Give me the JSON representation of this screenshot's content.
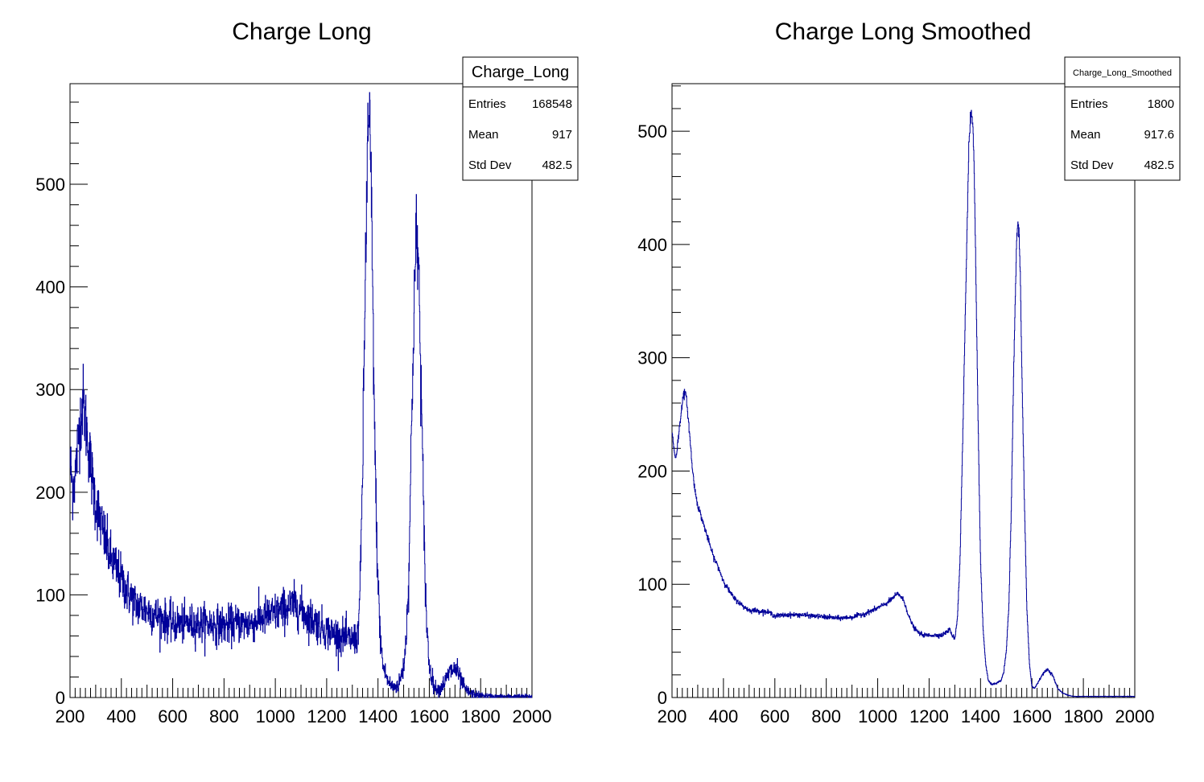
{
  "colors": {
    "line": "#000099",
    "frame": "#000000",
    "background": "#ffffff"
  },
  "chart_data": [
    {
      "type": "line",
      "title": "Charge Long",
      "xlim": [
        200,
        2000
      ],
      "ylim": [
        0,
        598
      ],
      "xticks": [
        200,
        400,
        600,
        800,
        1000,
        1200,
        1400,
        1600,
        1800,
        2000
      ],
      "yticks": [
        0,
        100,
        200,
        300,
        400,
        500
      ],
      "noise": true,
      "stats": {
        "name": "Charge_Long",
        "rows": [
          {
            "label": "Entries",
            "value": "168548"
          },
          {
            "label": "Mean",
            "value": "917"
          },
          {
            "label": "Std Dev",
            "value": "482.5"
          }
        ]
      },
      "series": [
        {
          "x": [
            200,
            210,
            220,
            235,
            250,
            260,
            270,
            285,
            300,
            320,
            340,
            360,
            380,
            400,
            430,
            460,
            500,
            550,
            600,
            650,
            700,
            750,
            800,
            850,
            900,
            950,
            1000,
            1050,
            1080,
            1100,
            1120,
            1150,
            1200,
            1250,
            1300,
            1320,
            1330,
            1340,
            1350,
            1360,
            1365,
            1370,
            1375,
            1380,
            1390,
            1400,
            1410,
            1420,
            1440,
            1460,
            1480,
            1500,
            1510,
            1520,
            1530,
            1540,
            1550,
            1555,
            1560,
            1570,
            1580,
            1590,
            1600,
            1620,
            1640,
            1660,
            1680,
            1700,
            1710,
            1720,
            1740,
            1760,
            1800,
            1850,
            1900,
            2000
          ],
          "y": [
            230,
            205,
            215,
            260,
            290,
            270,
            250,
            215,
            190,
            170,
            150,
            135,
            125,
            115,
            100,
            90,
            85,
            78,
            72,
            72,
            72,
            72,
            70,
            72,
            72,
            78,
            82,
            88,
            90,
            86,
            80,
            75,
            65,
            60,
            56,
            58,
            100,
            220,
            400,
            545,
            555,
            540,
            470,
            380,
            210,
            110,
            55,
            30,
            15,
            10,
            12,
            30,
            60,
            120,
            250,
            380,
            450,
            440,
            400,
            280,
            150,
            70,
            30,
            10,
            8,
            15,
            25,
            28,
            25,
            18,
            8,
            4,
            2,
            1,
            1,
            1
          ]
        }
      ]
    },
    {
      "type": "line",
      "title": "Charge Long Smoothed",
      "xlim": [
        200,
        2000
      ],
      "ylim": [
        0,
        542
      ],
      "xticks": [
        200,
        400,
        600,
        800,
        1000,
        1200,
        1400,
        1600,
        1800,
        2000
      ],
      "yticks": [
        0,
        100,
        200,
        300,
        400,
        500
      ],
      "noise": false,
      "stats": {
        "name": "Charge_Long_Smoothed",
        "rows": [
          {
            "label": "Entries",
            "value": "1800"
          },
          {
            "label": "Mean",
            "value": "917.6"
          },
          {
            "label": "Std Dev",
            "value": "482.5"
          }
        ]
      },
      "series": [
        {
          "x": [
            200,
            205,
            210,
            215,
            220,
            230,
            240,
            250,
            255,
            260,
            270,
            280,
            290,
            300,
            320,
            340,
            360,
            380,
            400,
            420,
            440,
            460,
            480,
            500,
            520,
            550,
            580,
            600,
            650,
            700,
            750,
            800,
            850,
            900,
            950,
            1000,
            1040,
            1060,
            1080,
            1090,
            1100,
            1110,
            1120,
            1140,
            1160,
            1180,
            1200,
            1250,
            1280,
            1290,
            1300,
            1310,
            1320,
            1330,
            1340,
            1350,
            1355,
            1360,
            1365,
            1370,
            1375,
            1380,
            1390,
            1400,
            1410,
            1420,
            1430,
            1440,
            1460,
            1480,
            1490,
            1500,
            1510,
            1520,
            1530,
            1540,
            1545,
            1550,
            1555,
            1560,
            1570,
            1580,
            1590,
            1600,
            1610,
            1620,
            1640,
            1660,
            1680,
            1700,
            1720,
            1740,
            1760,
            1800,
            1850,
            1900,
            1950,
            2000
          ],
          "y": [
            235,
            225,
            215,
            212,
            220,
            240,
            262,
            270,
            265,
            255,
            228,
            200,
            182,
            170,
            155,
            140,
            125,
            115,
            103,
            95,
            88,
            84,
            80,
            77,
            77,
            76,
            75,
            72,
            73,
            73,
            72,
            71,
            70,
            71,
            74,
            79,
            84,
            88,
            92,
            89,
            86,
            80,
            72,
            62,
            57,
            55,
            55,
            55,
            60,
            55,
            52,
            70,
            120,
            220,
            330,
            440,
            490,
            512,
            515,
            505,
            470,
            400,
            250,
            120,
            60,
            30,
            15,
            12,
            12,
            15,
            22,
            40,
            80,
            170,
            300,
            400,
            420,
            410,
            370,
            300,
            180,
            80,
            30,
            10,
            8,
            12,
            20,
            25,
            20,
            8,
            4,
            2,
            1,
            1,
            1,
            1,
            1,
            1
          ]
        }
      ]
    }
  ]
}
